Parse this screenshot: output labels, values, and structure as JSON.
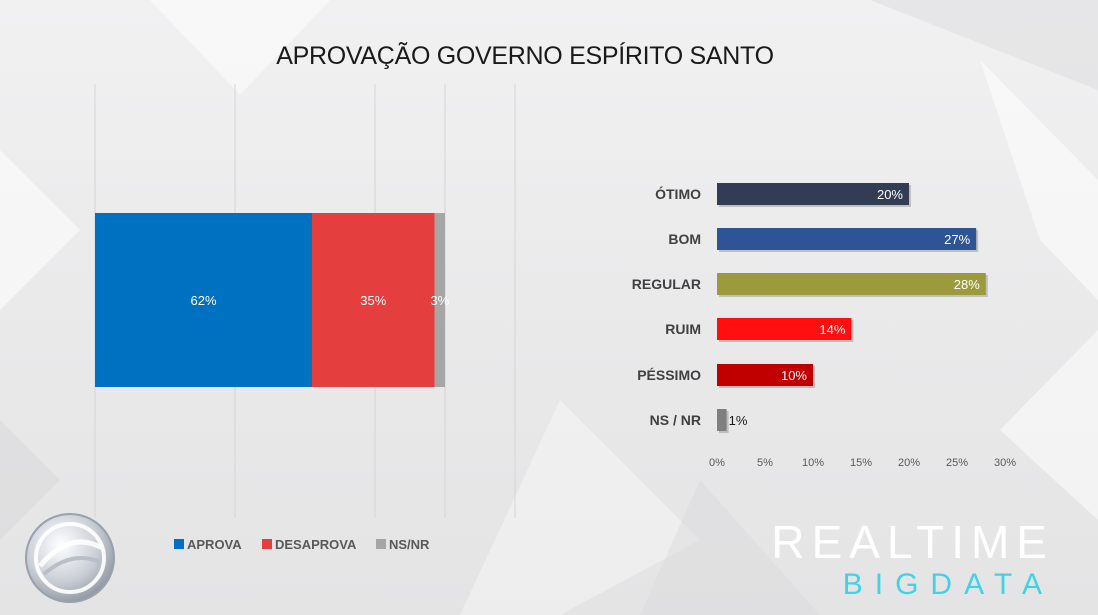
{
  "title": "APROVAÇÃO GOVERNO ESPÍRITO SANTO",
  "chart_data": [
    {
      "type": "bar",
      "orientation": "horizontal-stacked",
      "series": [
        {
          "name": "APROVA",
          "values": [
            62
          ],
          "label": "62%",
          "color": "#0070c0"
        },
        {
          "name": "DESAPROVA",
          "values": [
            35
          ],
          "label": "35%",
          "color": "#e53e3e"
        },
        {
          "name": "NS/NR",
          "values": [
            3
          ],
          "label": "3%",
          "color": "#a6a6a6"
        }
      ],
      "legend_position": "bottom",
      "grid": true
    },
    {
      "type": "bar",
      "orientation": "horizontal",
      "categories": [
        "ÓTIMO",
        "BOM",
        "REGULAR",
        "RUIM",
        "PÉSSIMO",
        "NS / NR"
      ],
      "values": [
        20,
        27,
        28,
        14,
        10,
        1
      ],
      "labels": [
        "20%",
        "27%",
        "28%",
        "14%",
        "10%",
        "1%"
      ],
      "colors": [
        "#323c52",
        "#2e5496",
        "#9b9b3d",
        "#ff0f0f",
        "#c00000",
        "#7f7f7f"
      ],
      "xlim": [
        0,
        30
      ],
      "xticks": [
        "0%",
        "5%",
        "10%",
        "15%",
        "20%",
        "25%",
        "30%"
      ],
      "grid": false
    }
  ],
  "brand": {
    "line1": "REALTIME",
    "line2": "BIGDATA"
  },
  "icons": {
    "logo": "record-tv-logo-icon"
  }
}
